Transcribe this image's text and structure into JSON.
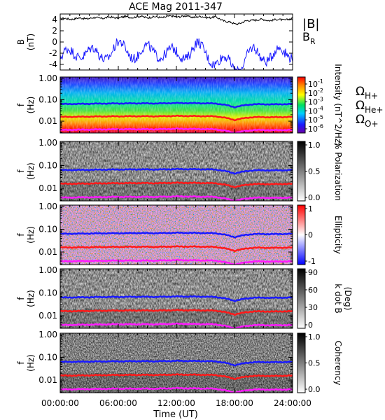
{
  "title": "ACE Mag 2011-347",
  "xlabel": "Time (UT)",
  "x_ticks": [
    "00:00:00",
    "06:00:00",
    "12:00:00",
    "18:00:00",
    "24:00:00"
  ],
  "chart_data": [
    {
      "type": "line",
      "panel": "magnetic-field",
      "ylabel": [
        "B",
        "(nT)"
      ],
      "ylim": [
        -5,
        5
      ],
      "y_ticks": [
        "4",
        "2",
        "0",
        "-2",
        "-4"
      ],
      "x": [
        0,
        2,
        4,
        6,
        8,
        10,
        12,
        14,
        16,
        18,
        20,
        22,
        24
      ],
      "series": [
        {
          "name": "|B|",
          "color": "#000000",
          "values": [
            4.1,
            4.2,
            4.3,
            4.4,
            4.5,
            4.4,
            4.6,
            4.5,
            4.4,
            3.2,
            4.0,
            3.9,
            4.1
          ]
        },
        {
          "name": "B",
          "name_sub": "R",
          "color": "#1a1aff",
          "values": [
            -3.0,
            -1.5,
            -2.5,
            -1.0,
            -2.0,
            -1.5,
            -2.5,
            -1.0,
            -3.0,
            -4.5,
            -2.0,
            -2.5,
            -1.5
          ]
        }
      ]
    },
    {
      "type": "heatmap",
      "panel": "intensity",
      "colormap": "rainbow",
      "ylabel": [
        "f",
        "(Hz)"
      ],
      "y_ticks": [
        "1.00",
        "0.10",
        "0.01"
      ],
      "cbar_ticks": [
        "10^-1",
        "10^-2",
        "10^-3",
        "10^-4",
        "10^-5",
        "10^-6"
      ],
      "cbar_label": "Intensity (nT^2/Hz)",
      "gyro_labels": [
        {
          "sym": "Ω",
          "sub": "H+",
          "color": "#1a1aff"
        },
        {
          "sym": "Ω",
          "sub": "He+",
          "color": "#ff1a1a"
        },
        {
          "sym": "Ω",
          "sub": "O+",
          "color": "#ff1aff"
        }
      ]
    },
    {
      "type": "heatmap",
      "panel": "polarization",
      "colormap": "gray",
      "ylabel": [
        "f",
        "(Hz)"
      ],
      "y_ticks": [
        "1.00",
        "0.10",
        "0.01"
      ],
      "cbar_ticks": [
        "1.0",
        "0.5",
        "0.0"
      ],
      "cbar_label": "% Polarization"
    },
    {
      "type": "heatmap",
      "panel": "ellipticity",
      "colormap": "bwr",
      "ylabel": [
        "f",
        "(Hz)"
      ],
      "y_ticks": [
        "1.00",
        "0.10",
        "0.01"
      ],
      "cbar_ticks": [
        "1",
        "0",
        "-1"
      ],
      "cbar_label": "Ellipticity"
    },
    {
      "type": "heatmap",
      "panel": "k-dot-b",
      "colormap": "gray",
      "ylabel": [
        "f",
        "(Hz)"
      ],
      "y_ticks": [
        "1.00",
        "0.10",
        "0.01"
      ],
      "cbar_ticks": [
        "90",
        "60",
        "30",
        "0"
      ],
      "cbar_label": [
        "k dot B",
        "(Deg)"
      ]
    },
    {
      "type": "heatmap",
      "panel": "coherency",
      "colormap": "gray",
      "ylabel": [
        "f",
        "(Hz)"
      ],
      "y_ticks": [
        "1.00",
        "0.10",
        "0.01"
      ],
      "cbar_ticks": [
        "1.0",
        "0.5",
        "0.0"
      ],
      "cbar_label": "Coherency"
    }
  ],
  "gyrofrequencies": {
    "x": [
      0,
      2,
      4,
      6,
      8,
      10,
      12,
      14,
      16,
      17,
      18,
      19,
      20,
      22,
      24
    ],
    "H+": [
      0.063,
      0.064,
      0.066,
      0.067,
      0.068,
      0.067,
      0.07,
      0.069,
      0.067,
      0.058,
      0.045,
      0.055,
      0.062,
      0.061,
      0.063
    ],
    "He+": [
      0.0158,
      0.016,
      0.0165,
      0.0168,
      0.017,
      0.0168,
      0.0175,
      0.0172,
      0.0168,
      0.0145,
      0.0113,
      0.0138,
      0.0155,
      0.0152,
      0.0158
    ],
    "O+": [
      0.0039,
      0.004,
      0.0041,
      0.0042,
      0.0042,
      0.0042,
      0.0044,
      0.0043,
      0.0042,
      0.0036,
      0.0028,
      0.0034,
      0.0039,
      0.0038,
      0.0039
    ]
  }
}
